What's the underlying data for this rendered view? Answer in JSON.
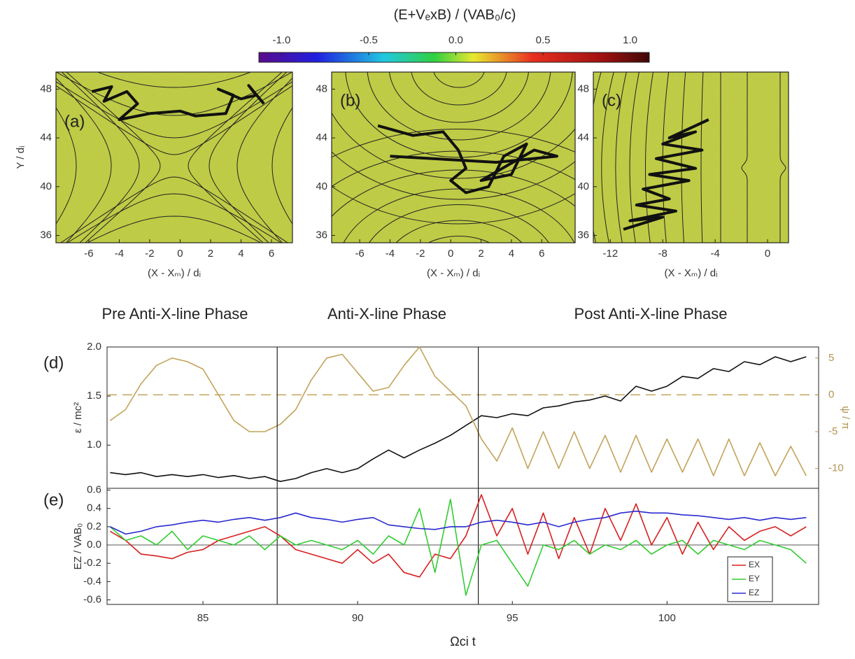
{
  "chart_data": [
    {
      "type": "colorbar",
      "title": "(E+VₑxB) / (VAB₀/c)",
      "clim": [
        -1.13,
        1.11
      ],
      "ticks": [
        {
          "value": -1,
          "label": "-1.0"
        },
        -0.5,
        {
          "value": 0,
          "label": "0.0"
        },
        0.5,
        {
          "value": 1,
          "label": "1.0"
        }
      ]
    },
    {
      "type": "field-map",
      "label": "(a)",
      "xlabel": "(X - Xₘ) / dᵢ",
      "ylabel": "Y / dᵢ",
      "xlim": [
        -8.16,
        7.38
      ],
      "ylim": [
        35.4,
        49.4
      ],
      "xticks": [
        -6,
        -4,
        -2,
        0,
        2,
        4,
        6
      ],
      "yticks": [
        36,
        40,
        44,
        48
      ],
      "trajectory": {
        "color": "#111111",
        "x": [
          -5.8,
          -4.5,
          -5,
          -3.5,
          -2.8,
          -4,
          -2,
          0,
          1,
          3,
          3.5,
          2.5,
          4,
          5,
          4.5,
          5.5
        ],
        "y": [
          47.8,
          48.2,
          47,
          47.8,
          46.8,
          45.5,
          46,
          46.2,
          45.8,
          46,
          47.5,
          48,
          47.2,
          47.5,
          48.3,
          46.8
        ]
      }
    },
    {
      "type": "field-map",
      "label": "(b)",
      "xlabel": "(X - Xₘ) / dᵢ",
      "xlim": [
        -7.85,
        8.2
      ],
      "ylim": [
        35.4,
        49.4
      ],
      "xticks": [
        -6,
        -4,
        -2,
        0,
        2,
        4,
        6
      ],
      "yticks": [
        36,
        40,
        44,
        48
      ],
      "trajectory": {
        "color": "#111111",
        "x": [
          -4.8,
          -2.5,
          -0.5,
          0.5,
          1,
          0,
          1,
          2.5,
          3.5,
          5,
          4,
          2,
          5.5,
          7,
          3,
          -4
        ],
        "y": [
          45,
          44.2,
          44.5,
          43,
          41.5,
          40.5,
          39.5,
          40,
          42.5,
          43.5,
          41,
          40.5,
          43,
          42.5,
          42,
          42.5
        ]
      }
    },
    {
      "type": "field-map",
      "label": "(c)",
      "xlabel": "(X - Xₘ) / dᵢ",
      "xlim": [
        -13.3,
        1.6
      ],
      "ylim": [
        35.4,
        49.4
      ],
      "xticks": [
        -12,
        -8,
        -4,
        0
      ],
      "yticks": [
        36,
        40,
        44,
        48
      ],
      "trajectory": {
        "color": "#111111",
        "x": [
          -11,
          -8,
          -10.5,
          -7,
          -10,
          -7.5,
          -9.5,
          -6,
          -9,
          -5.5,
          -8.5,
          -5,
          -8,
          -5.5,
          -7.5,
          -4.5
        ],
        "y": [
          36.5,
          37.5,
          37.2,
          38,
          38.5,
          39,
          39.8,
          40.5,
          41,
          41.5,
          42.3,
          43,
          43.5,
          44.5,
          44,
          45.5
        ]
      }
    },
    {
      "type": "line",
      "label": "(d)",
      "ylabel": "ε / mc²",
      "y2label": "ψ / π",
      "phases": [
        "Pre Anti-X-line Phase",
        "Anti-X-line Phase",
        "Post Anti-X-line Phase"
      ],
      "xlim": [
        81.9,
        104.9
      ],
      "ylim": [
        0.56,
        2.0
      ],
      "yticks": [
        {
          "value": 1,
          "label": "1.0"
        },
        1.5,
        {
          "value": 2,
          "label": "2.0"
        }
      ],
      "y2lim": [
        -12.7,
        6.5
      ],
      "y2ticks": [
        5,
        0,
        -5,
        -10
      ],
      "vlines": [
        87.4,
        93.9
      ],
      "x": [
        82,
        82.5,
        83,
        83.5,
        84,
        84.5,
        85,
        85.5,
        86,
        86.5,
        87,
        87.5,
        88,
        88.5,
        89,
        89.5,
        90,
        90.5,
        91,
        91.5,
        92,
        92.5,
        93,
        93.5,
        94,
        94.5,
        95,
        95.5,
        96,
        96.5,
        97,
        97.5,
        98,
        98.5,
        99,
        99.5,
        100,
        100.5,
        101,
        101.5,
        102,
        102.5,
        103,
        103.5,
        104,
        104.5
      ],
      "series": [
        {
          "color": "#111111",
          "values": [
            0.72,
            0.7,
            0.72,
            0.68,
            0.7,
            0.68,
            0.7,
            0.67,
            0.69,
            0.66,
            0.68,
            0.63,
            0.66,
            0.72,
            0.76,
            0.72,
            0.76,
            0.86,
            0.95,
            0.87,
            0.95,
            1.02,
            1.1,
            1.2,
            1.3,
            1.28,
            1.32,
            1.3,
            1.38,
            1.4,
            1.44,
            1.46,
            1.5,
            1.45,
            1.6,
            1.55,
            1.6,
            1.7,
            1.68,
            1.78,
            1.75,
            1.85,
            1.82,
            1.9,
            1.85,
            1.9
          ]
        },
        {
          "color": "#c3a35a",
          "axis": "y2",
          "values": [
            -3.5,
            -2,
            1.5,
            4,
            5,
            4.5,
            3.5,
            0,
            -3.5,
            -5,
            -5,
            -4,
            -2,
            2,
            5,
            5.5,
            3,
            0.5,
            1,
            4,
            6.5,
            2.5,
            0.5,
            -1.5,
            -6,
            -9,
            -4.5,
            -10,
            -5,
            -10,
            -5,
            -10,
            -5.5,
            -10.5,
            -5.5,
            -10.5,
            -6,
            -10.5,
            -6,
            -11,
            -6,
            -11,
            -6.5,
            -11,
            -7,
            -11
          ]
        }
      ]
    },
    {
      "type": "line",
      "label": "(e)",
      "ylabel": "EZ / VAB₀",
      "xlabel": "Ωci t",
      "xlim": [
        81.9,
        104.9
      ],
      "ylim": [
        -0.65,
        0.62
      ],
      "xticks": [
        85,
        90,
        95,
        100
      ],
      "yticks": [
        0.6,
        0.4,
        0.2,
        {
          "value": 0,
          "label": "0.0"
        },
        -0.2,
        -0.4,
        -0.6
      ],
      "legend": "lower right",
      "x": [
        82,
        82.5,
        83,
        83.5,
        84,
        84.5,
        85,
        85.5,
        86,
        86.5,
        87,
        87.5,
        88,
        88.5,
        89,
        89.5,
        90,
        90.5,
        91,
        91.5,
        92,
        92.5,
        93,
        93.5,
        94,
        94.5,
        95,
        95.5,
        96,
        96.5,
        97,
        97.5,
        98,
        98.5,
        99,
        99.5,
        100,
        100.5,
        101,
        101.5,
        102,
        102.5,
        103,
        103.5,
        104,
        104.5
      ],
      "series": [
        {
          "name": "EX",
          "color": "#d62020",
          "values": [
            0.15,
            0.05,
            -0.1,
            -0.12,
            -0.15,
            -0.08,
            -0.05,
            0.05,
            0.1,
            0.15,
            0.2,
            0.1,
            -0.05,
            -0.1,
            -0.15,
            -0.2,
            -0.05,
            -0.2,
            -0.1,
            -0.3,
            -0.35,
            -0.1,
            -0.15,
            0.1,
            0.55,
            0.1,
            0.4,
            -0.1,
            0.35,
            -0.15,
            0.3,
            -0.1,
            0.4,
            0.05,
            0.45,
            0,
            0.3,
            -0.1,
            0.25,
            -0.05,
            0.2,
            0.05,
            0.15,
            0.2,
            0.1,
            0.2
          ]
        },
        {
          "name": "EY",
          "color": "#33cc33",
          "values": [
            0.2,
            0.05,
            0.1,
            0,
            0.15,
            -0.05,
            0.1,
            0.05,
            0,
            0.1,
            -0.05,
            0.1,
            0,
            0.05,
            0,
            -0.05,
            0.05,
            -0.1,
            0.1,
            0,
            0.4,
            -0.3,
            0.5,
            -0.55,
            0,
            0.05,
            -0.2,
            -0.45,
            0,
            -0.05,
            0.05,
            -0.1,
            0,
            -0.05,
            0.05,
            -0.1,
            0,
            0.05,
            -0.1,
            0.05,
            0,
            -0.05,
            0.05,
            0,
            -0.05,
            -0.2
          ]
        },
        {
          "name": "EZ",
          "color": "#2a2ad0",
          "values": [
            0.2,
            0.12,
            0.15,
            0.2,
            0.22,
            0.25,
            0.27,
            0.25,
            0.28,
            0.3,
            0.27,
            0.3,
            0.35,
            0.3,
            0.28,
            0.25,
            0.28,
            0.3,
            0.22,
            0.2,
            0.18,
            0.17,
            0.2,
            0.2,
            0.25,
            0.27,
            0.25,
            0.22,
            0.25,
            0.2,
            0.25,
            0.28,
            0.3,
            0.35,
            0.37,
            0.35,
            0.35,
            0.33,
            0.32,
            0.3,
            0.28,
            0.3,
            0.27,
            0.3,
            0.28,
            0.3
          ]
        }
      ]
    }
  ]
}
